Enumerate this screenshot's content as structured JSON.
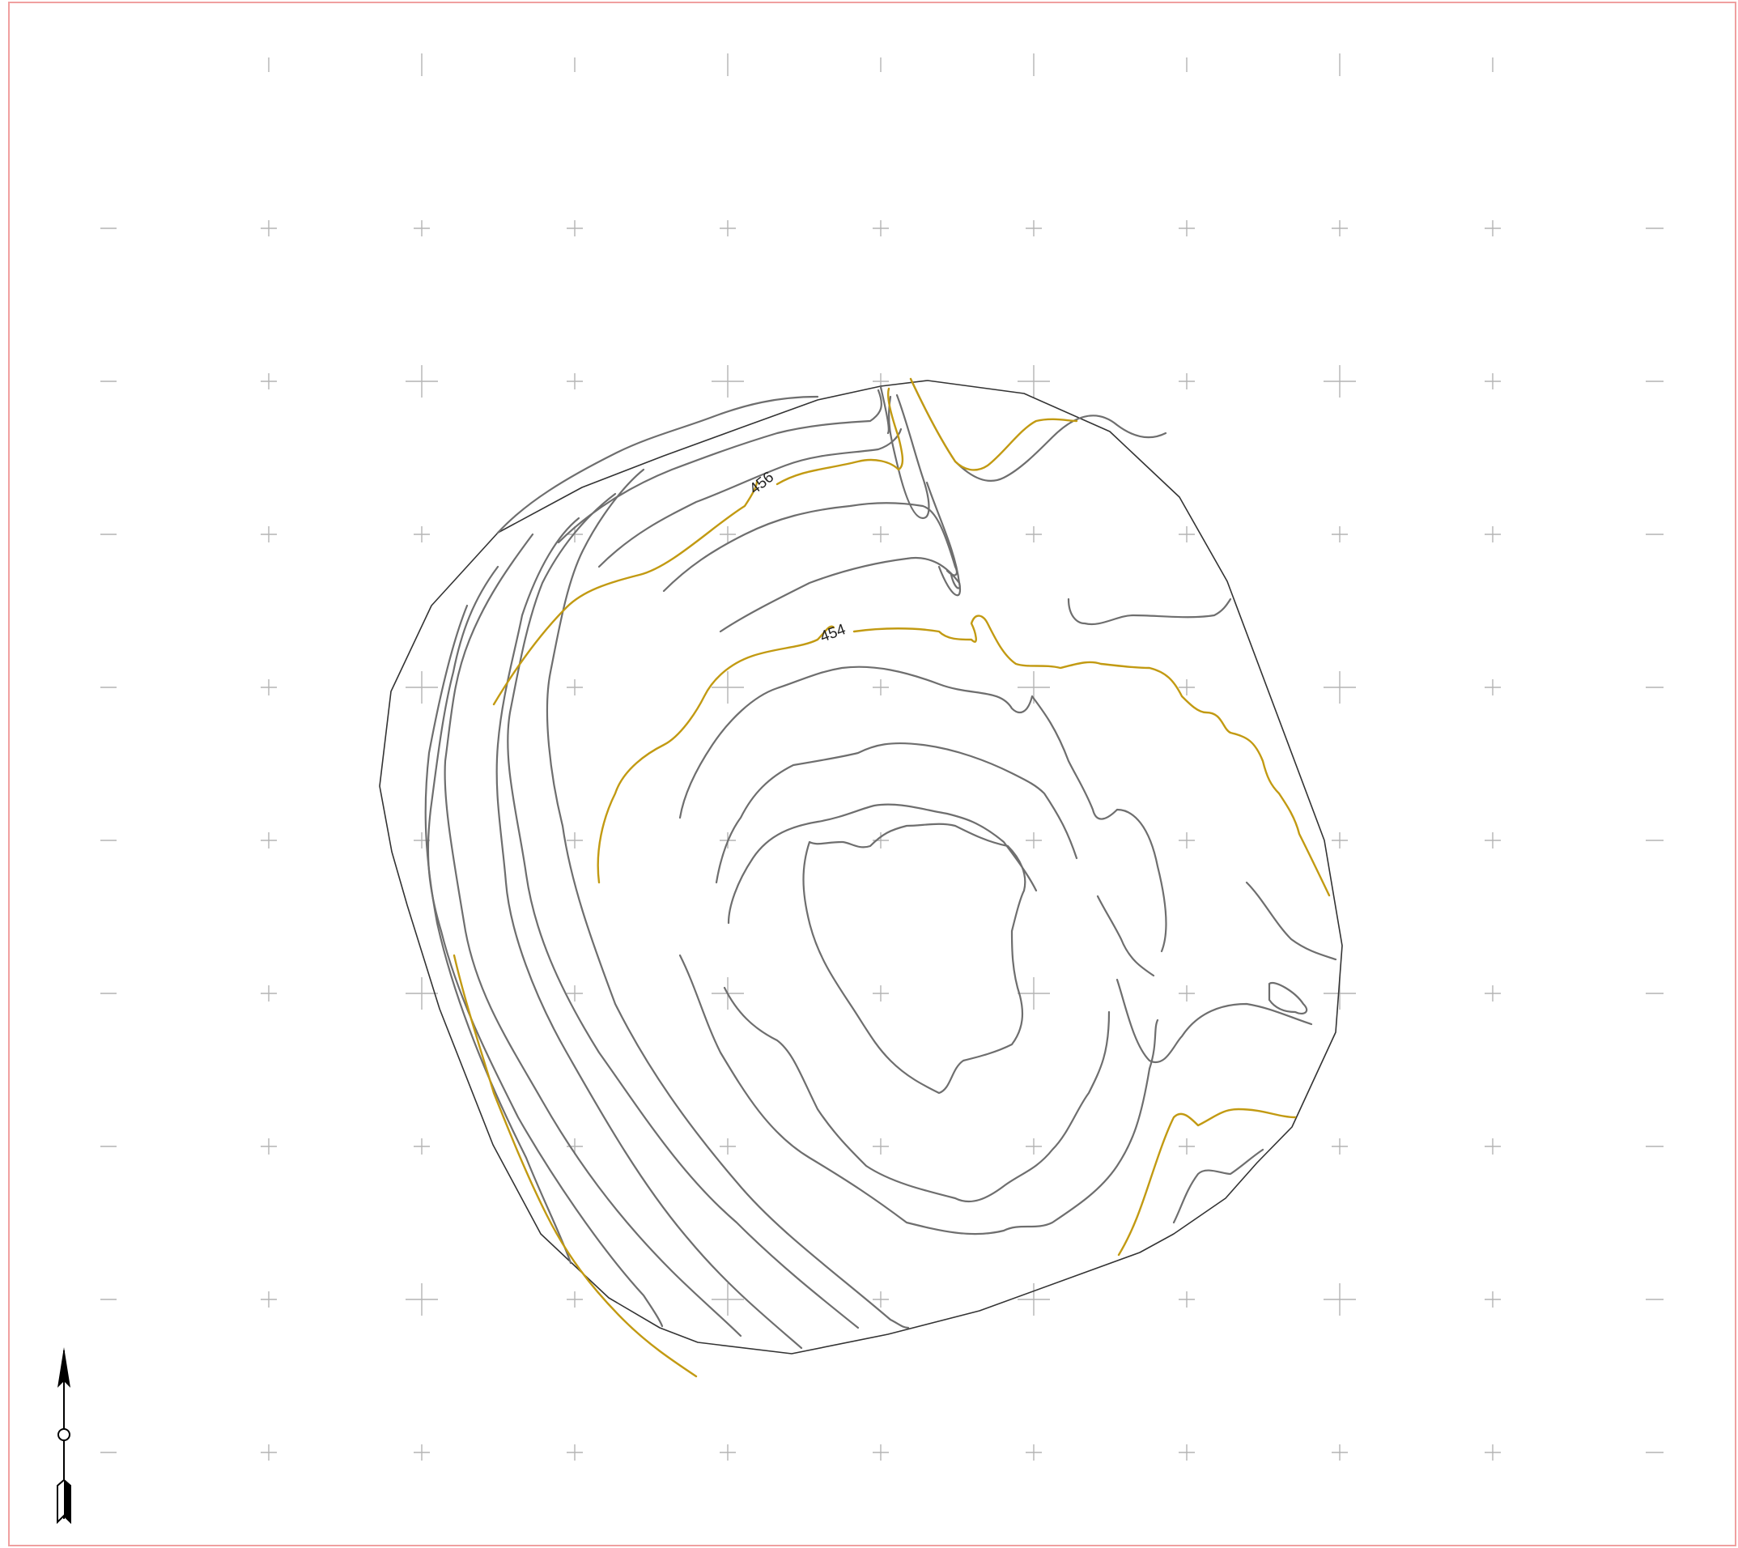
{
  "map": {
    "type": "topographic-contour-map",
    "contour_labels": [
      {
        "id": "label-456",
        "text": "456"
      },
      {
        "id": "label-454",
        "text": "454"
      }
    ],
    "colors": {
      "frame": "#f0a0a0",
      "grid": "#b4b4b4",
      "boundary": "#333333",
      "contour": "#6e6e6e",
      "index_contour": "#c29a12"
    },
    "north_arrow": {
      "icon": "north-arrow-icon"
    }
  }
}
